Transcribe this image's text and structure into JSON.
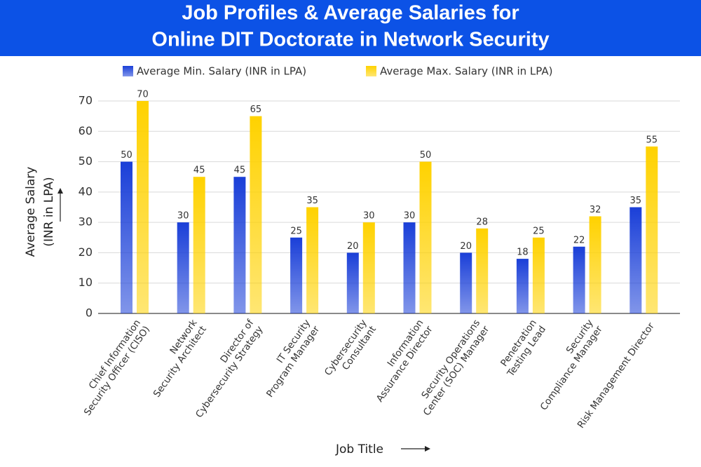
{
  "chart_data": {
    "type": "bar",
    "title": [
      "Job Profiles & Average Salaries for",
      "Online DIT Doctorate in Network Security"
    ],
    "y_label": [
      "Average Salary",
      "(INR in LPA)"
    ],
    "x_label": "Job Title",
    "categories": [
      [
        "Chief Information",
        "Security Officer (CISO)"
      ],
      [
        "Network",
        "Security Architect"
      ],
      [
        "Director of",
        "Cybersecurity Strategy"
      ],
      [
        "IT Security",
        "Program Manager"
      ],
      [
        "Cybersecurity",
        "Consultant"
      ],
      [
        "Information",
        "Assurance Director"
      ],
      [
        "Security Operations",
        "Center (SOC) Manager"
      ],
      [
        "Penetration",
        "Testing Lead"
      ],
      [
        "Security",
        "Compliance Manager"
      ],
      [
        "Risk Management Director"
      ]
    ],
    "series": [
      {
        "name": "Average Min. Salary (INR in LPA)",
        "color": "#1a3fd8",
        "values": [
          50,
          30,
          45,
          25,
          20,
          30,
          20,
          18,
          22,
          35
        ]
      },
      {
        "name": "Average Max. Salary (INR in LPA)",
        "color": "#ffd200",
        "values": [
          70,
          45,
          65,
          35,
          30,
          50,
          28,
          25,
          32,
          55
        ]
      }
    ],
    "ylim": [
      0,
      70
    ],
    "yticks": [
      0,
      10,
      20,
      30,
      40,
      50,
      60,
      70
    ],
    "grid": true,
    "legend": "top"
  }
}
